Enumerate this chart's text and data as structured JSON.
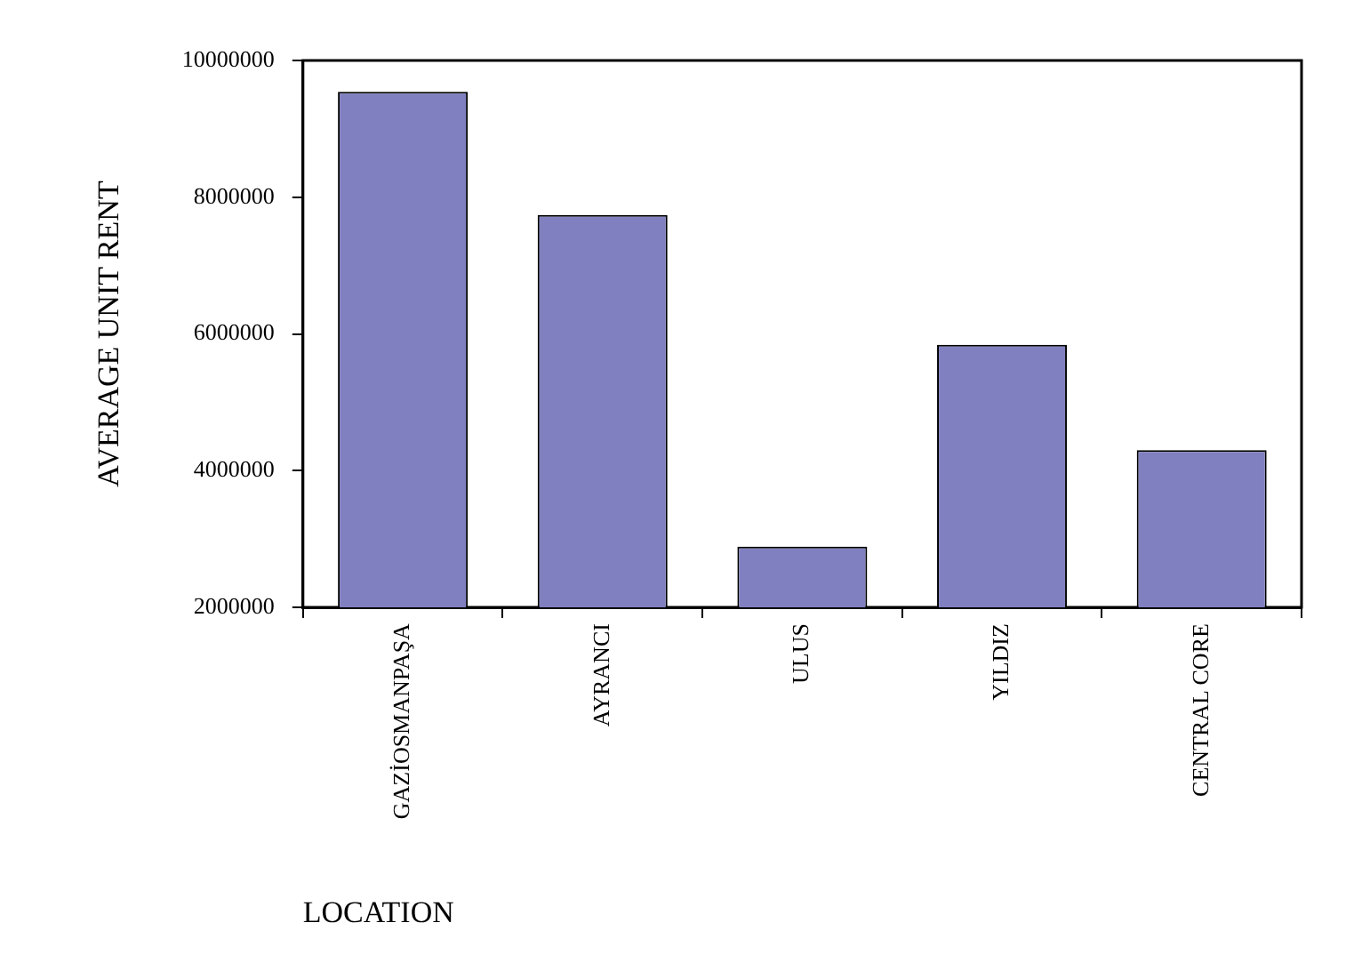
{
  "chart_data": {
    "type": "bar",
    "xlabel": "LOCATION",
    "ylabel": "AVERAGE UNIT RENT",
    "categories": [
      "GAZİOSMANPAŞA",
      "AYRANCI",
      "ULUS",
      "YILDIZ",
      "CENTRAL CORE"
    ],
    "values": [
      9540000,
      7740000,
      2890000,
      5840000,
      4300000
    ],
    "color": "#8080c0",
    "ylim": [
      2000000,
      10000000
    ],
    "yticks": [
      2000000,
      4000000,
      6000000,
      8000000,
      10000000
    ],
    "grid": false,
    "legend": false
  }
}
